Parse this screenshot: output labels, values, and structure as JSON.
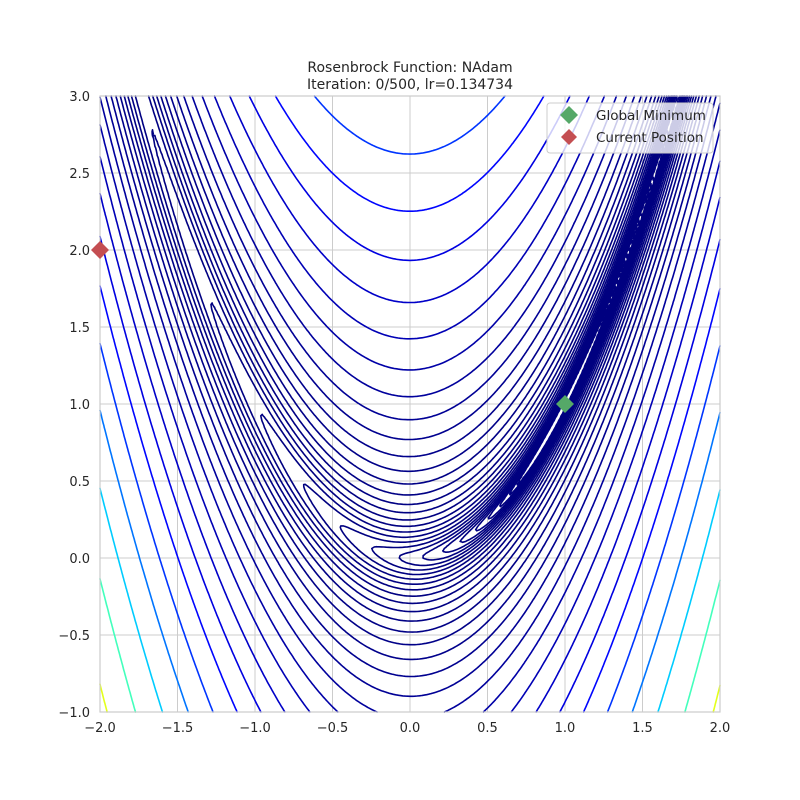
{
  "chart_data": {
    "type": "contour",
    "title": "Rosenbrock Function: NAdam",
    "subtitle": "Iteration: 0/500, lr=0.134734",
    "function": "(1-x)^2 + 100(y-x^2)^2",
    "xlim": [
      -2.0,
      2.0
    ],
    "ylim": [
      -1.0,
      3.0
    ],
    "x_ticks": [
      "−2.0",
      "−1.5",
      "−1.0",
      "−0.5",
      "0.0",
      "0.5",
      "1.0",
      "1.5",
      "2.0"
    ],
    "y_ticks": [
      "−1.0",
      "−0.5",
      "0.0",
      "0.5",
      "1.0",
      "1.5",
      "2.0",
      "2.5",
      "3.0"
    ],
    "x_tick_values": [
      -2,
      -1.5,
      -1,
      -0.5,
      0,
      0.5,
      1,
      1.5,
      2
    ],
    "y_tick_values": [
      -1,
      -0.5,
      0,
      0.5,
      1,
      1.5,
      2,
      2.5,
      3
    ],
    "grid": true,
    "colormap": "jet",
    "levels_log10_range": [
      -1,
      3.5
    ],
    "level_count": 35,
    "legend_position": "top-right",
    "markers": [
      {
        "name": "Global Minimum",
        "x": 1.0,
        "y": 1.0,
        "color": "#55a868",
        "shape": "diamond"
      },
      {
        "name": "Current Position",
        "x": -2.0,
        "y": 2.0,
        "color": "#c44e52",
        "shape": "diamond"
      }
    ]
  }
}
